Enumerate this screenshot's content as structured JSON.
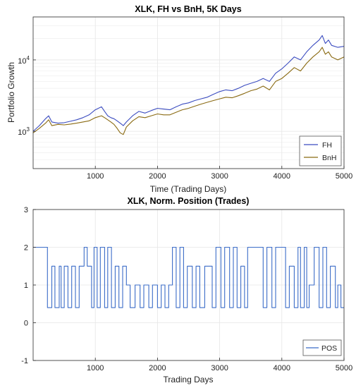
{
  "chart_data": [
    {
      "type": "line",
      "title": "XLK, FH vs BnH, 5K Days",
      "xlabel": "Time (Trading Days)",
      "ylabel": "Portfolio Growth",
      "xlim": [
        0,
        5000
      ],
      "ylim": [
        300,
        40000
      ],
      "yscale": "log",
      "x_ticks": [
        1000,
        2000,
        3000,
        4000,
        5000
      ],
      "y_ticks": [
        {
          "value": 1000,
          "label_base": "10",
          "label_exp": "3"
        },
        {
          "value": 10000,
          "label_base": "10",
          "label_exp": "4"
        }
      ],
      "grid": true,
      "legend_position": "bottom-right",
      "series": [
        {
          "name": "FH",
          "color": "#3b4cc0",
          "x": [
            0,
            100,
            200,
            250,
            300,
            400,
            500,
            600,
            700,
            800,
            900,
            1000,
            1100,
            1150,
            1200,
            1250,
            1300,
            1350,
            1400,
            1450,
            1500,
            1600,
            1700,
            1800,
            1900,
            2000,
            2100,
            2200,
            2300,
            2400,
            2500,
            2600,
            2700,
            2800,
            2900,
            3000,
            3100,
            3200,
            3300,
            3400,
            3500,
            3600,
            3700,
            3800,
            3900,
            4000,
            4100,
            4200,
            4300,
            4400,
            4500,
            4600,
            4650,
            4700,
            4750,
            4800,
            4900,
            5000
          ],
          "values": [
            1000,
            1200,
            1500,
            1650,
            1350,
            1300,
            1320,
            1380,
            1450,
            1550,
            1700,
            2000,
            2200,
            1900,
            1650,
            1550,
            1500,
            1400,
            1300,
            1200,
            1350,
            1650,
            1900,
            1800,
            1950,
            2100,
            2050,
            2000,
            2200,
            2400,
            2500,
            2700,
            2850,
            3000,
            3300,
            3600,
            3800,
            3700,
            4000,
            4400,
            4700,
            5000,
            5500,
            5000,
            6500,
            7500,
            9000,
            11000,
            10000,
            13000,
            16000,
            19000,
            22000,
            17000,
            19000,
            16000,
            15000,
            15500
          ]
        },
        {
          "name": "BnH",
          "color": "#8a6a12",
          "x": [
            0,
            100,
            200,
            250,
            300,
            400,
            500,
            600,
            700,
            800,
            900,
            1000,
            1100,
            1150,
            1200,
            1250,
            1300,
            1350,
            1400,
            1450,
            1500,
            1600,
            1700,
            1800,
            1900,
            2000,
            2100,
            2200,
            2300,
            2400,
            2500,
            2600,
            2700,
            2800,
            2900,
            3000,
            3100,
            3200,
            3300,
            3400,
            3500,
            3600,
            3700,
            3800,
            3900,
            4000,
            4100,
            4200,
            4300,
            4400,
            4500,
            4600,
            4650,
            4700,
            4750,
            4800,
            4900,
            5000
          ],
          "values": [
            950,
            1100,
            1300,
            1450,
            1200,
            1250,
            1230,
            1260,
            1300,
            1350,
            1400,
            1550,
            1650,
            1550,
            1450,
            1350,
            1250,
            1100,
            950,
            900,
            1150,
            1400,
            1600,
            1550,
            1650,
            1750,
            1700,
            1700,
            1850,
            2000,
            2100,
            2250,
            2400,
            2550,
            2700,
            2850,
            3000,
            2950,
            3150,
            3400,
            3700,
            3900,
            4300,
            3800,
            5000,
            5500,
            6500,
            7800,
            7000,
            9000,
            11000,
            13000,
            15000,
            12000,
            13000,
            11000,
            10000,
            11000
          ]
        }
      ]
    },
    {
      "type": "line",
      "title": "XLK, Norm. Position (Trades)",
      "xlabel": "Trading Days",
      "ylabel": "",
      "xlim": [
        0,
        5000
      ],
      "ylim": [
        -1,
        3
      ],
      "x_ticks": [
        1000,
        2000,
        3000,
        4000,
        5000
      ],
      "y_ticks": [
        -1,
        0,
        1,
        2,
        3
      ],
      "grid": true,
      "legend_position": "bottom-right",
      "series": [
        {
          "name": "POS",
          "color": "#3b6cc8",
          "segments": [
            [
              0,
              230,
              2
            ],
            [
              230,
              300,
              0.4
            ],
            [
              300,
              350,
              1.5
            ],
            [
              350,
              420,
              0.4
            ],
            [
              420,
              450,
              1.5
            ],
            [
              450,
              500,
              0.4
            ],
            [
              500,
              560,
              1.5
            ],
            [
              560,
              620,
              0.4
            ],
            [
              620,
              680,
              1.5
            ],
            [
              680,
              740,
              0.4
            ],
            [
              740,
              820,
              1.5
            ],
            [
              820,
              870,
              2
            ],
            [
              870,
              940,
              1.5
            ],
            [
              940,
              980,
              0.4
            ],
            [
              980,
              1030,
              2
            ],
            [
              1030,
              1080,
              0.4
            ],
            [
              1080,
              1150,
              2
            ],
            [
              1150,
              1200,
              0.4
            ],
            [
              1200,
              1260,
              2
            ],
            [
              1260,
              1320,
              0.4
            ],
            [
              1320,
              1380,
              1.5
            ],
            [
              1380,
              1440,
              0.4
            ],
            [
              1440,
              1500,
              1.5
            ],
            [
              1500,
              1560,
              1
            ],
            [
              1560,
              1640,
              0.4
            ],
            [
              1640,
              1720,
              1
            ],
            [
              1720,
              1780,
              0.4
            ],
            [
              1780,
              1860,
              1
            ],
            [
              1860,
              1920,
              0.4
            ],
            [
              1920,
              2000,
              1
            ],
            [
              2000,
              2060,
              0.4
            ],
            [
              2060,
              2120,
              1
            ],
            [
              2120,
              2180,
              0.4
            ],
            [
              2180,
              2240,
              1
            ],
            [
              2240,
              2300,
              2
            ],
            [
              2300,
              2360,
              0.4
            ],
            [
              2360,
              2420,
              2
            ],
            [
              2420,
              2480,
              0.4
            ],
            [
              2480,
              2560,
              1.5
            ],
            [
              2560,
              2620,
              0.4
            ],
            [
              2620,
              2680,
              1.5
            ],
            [
              2680,
              2760,
              0.4
            ],
            [
              2760,
              2880,
              1.5
            ],
            [
              2880,
              2940,
              0.4
            ],
            [
              2940,
              3020,
              2
            ],
            [
              3020,
              3080,
              0.4
            ],
            [
              3080,
              3160,
              2
            ],
            [
              3160,
              3220,
              0.4
            ],
            [
              3220,
              3280,
              2
            ],
            [
              3280,
              3340,
              0.4
            ],
            [
              3340,
              3400,
              1.5
            ],
            [
              3400,
              3450,
              0.4
            ],
            [
              3450,
              3700,
              2
            ],
            [
              3700,
              3760,
              0.4
            ],
            [
              3760,
              3840,
              2
            ],
            [
              3840,
              3900,
              0.4
            ],
            [
              3900,
              4060,
              2
            ],
            [
              4060,
              4120,
              0.4
            ],
            [
              4120,
              4200,
              1.5
            ],
            [
              4200,
              4260,
              0.4
            ],
            [
              4260,
              4300,
              2
            ],
            [
              4300,
              4360,
              0.4
            ],
            [
              4360,
              4400,
              2
            ],
            [
              4400,
              4440,
              0.4
            ],
            [
              4440,
              4520,
              1
            ],
            [
              4520,
              4600,
              2
            ],
            [
              4600,
              4660,
              0.4
            ],
            [
              4660,
              4720,
              2
            ],
            [
              4720,
              4780,
              0.4
            ],
            [
              4780,
              4860,
              1.5
            ],
            [
              4860,
              4900,
              0.4
            ],
            [
              4900,
              4950,
              1
            ],
            [
              4950,
              5000,
              0.4
            ]
          ]
        }
      ]
    }
  ]
}
